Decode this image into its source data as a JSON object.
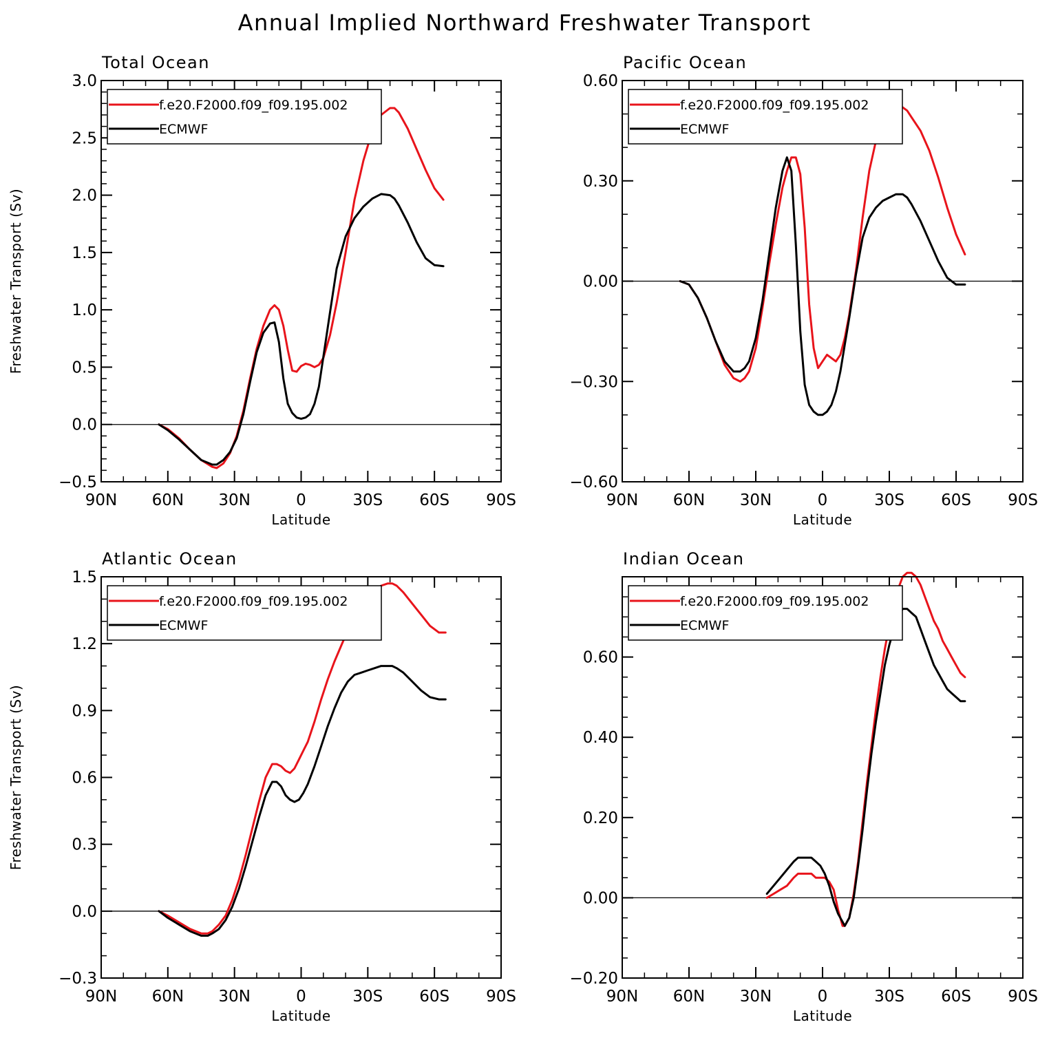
{
  "title": "Annual Implied Northward Freshwater Transport",
  "legend": {
    "series": [
      {
        "name": "f.e20.F2000.f09_f09.195.002",
        "color": "#e8141b"
      },
      {
        "name": "ECMWF",
        "color": "#000000"
      }
    ]
  },
  "chart_data": [
    {
      "type": "line",
      "title": "Total Ocean",
      "xlabel": "Latitude",
      "ylabel": "Freshwater Transport (Sv)",
      "xlim": [
        -90,
        90
      ],
      "ylim": [
        -0.5,
        3.0
      ],
      "xticks": [
        -90,
        -60,
        -30,
        0,
        30,
        60,
        90
      ],
      "xtick_labels": [
        "90N",
        "60N",
        "30N",
        "0",
        "30S",
        "60S",
        "90S"
      ],
      "yticks": [
        -0.5,
        0.0,
        0.5,
        1.0,
        1.5,
        2.0,
        2.5,
        3.0
      ],
      "ytick_labels": [
        "−0.5",
        "0.0",
        "0.5",
        "1.0",
        "1.5",
        "2.0",
        "2.5",
        "3.0"
      ],
      "y_minor_step": 0.1,
      "zero_line": true,
      "series": [
        {
          "name": "f.e20.F2000.f09_f09.195.002",
          "color": "#e8141b",
          "x": [
            -64,
            -60,
            -55,
            -50,
            -45,
            -40,
            -38,
            -35,
            -32,
            -29,
            -26,
            -23,
            -20,
            -17,
            -14,
            -12,
            -10,
            -8,
            -6,
            -4,
            -2,
            0,
            2,
            4,
            6,
            8,
            10,
            13,
            16,
            20,
            24,
            28,
            32,
            36,
            40,
            42,
            44,
            48,
            52,
            56,
            60,
            64
          ],
          "y": [
            0.0,
            -0.04,
            -0.12,
            -0.22,
            -0.31,
            -0.37,
            -0.38,
            -0.34,
            -0.25,
            -0.1,
            0.12,
            0.4,
            0.66,
            0.86,
            1.0,
            1.04,
            1.0,
            0.86,
            0.65,
            0.47,
            0.46,
            0.51,
            0.53,
            0.52,
            0.5,
            0.52,
            0.58,
            0.78,
            1.06,
            1.5,
            1.96,
            2.3,
            2.56,
            2.7,
            2.76,
            2.76,
            2.72,
            2.58,
            2.4,
            2.22,
            2.06,
            1.96
          ]
        },
        {
          "name": "ECMWF",
          "color": "#000000",
          "x": [
            -64,
            -60,
            -55,
            -50,
            -45,
            -40,
            -38,
            -35,
            -32,
            -29,
            -26,
            -23,
            -20,
            -17,
            -14,
            -12,
            -10,
            -8,
            -6,
            -4,
            -2,
            0,
            2,
            4,
            6,
            8,
            10,
            13,
            16,
            20,
            24,
            28,
            32,
            36,
            40,
            42,
            44,
            48,
            52,
            56,
            60,
            64
          ],
          "y": [
            0.0,
            -0.05,
            -0.13,
            -0.22,
            -0.31,
            -0.35,
            -0.35,
            -0.31,
            -0.24,
            -0.12,
            0.09,
            0.37,
            0.63,
            0.8,
            0.88,
            0.89,
            0.72,
            0.4,
            0.18,
            0.1,
            0.06,
            0.05,
            0.06,
            0.09,
            0.18,
            0.33,
            0.59,
            0.98,
            1.36,
            1.64,
            1.8,
            1.9,
            1.97,
            2.01,
            2.0,
            1.97,
            1.91,
            1.76,
            1.59,
            1.45,
            1.39,
            1.38
          ]
        }
      ]
    },
    {
      "type": "line",
      "title": "Pacific Ocean",
      "xlabel": "Latitude",
      "ylabel": "",
      "xlim": [
        -90,
        90
      ],
      "ylim": [
        -0.6,
        0.6
      ],
      "xticks": [
        -90,
        -60,
        -30,
        0,
        30,
        60,
        90
      ],
      "xtick_labels": [
        "90N",
        "60N",
        "30N",
        "0",
        "30S",
        "60S",
        "90S"
      ],
      "yticks": [
        -0.6,
        -0.3,
        0.0,
        0.3,
        0.6
      ],
      "ytick_labels": [
        "−0.60",
        "−0.30",
        "0.00",
        "0.30",
        "0.60"
      ],
      "y_minor_step": 0.1,
      "zero_line": true,
      "series": [
        {
          "name": "f.e20.F2000.f09_f09.195.002",
          "color": "#e8141b",
          "x": [
            -64,
            -60,
            -56,
            -52,
            -48,
            -44,
            -40,
            -37,
            -35,
            -33,
            -30,
            -27,
            -24,
            -21,
            -18,
            -16,
            -14,
            -12,
            -10,
            -8,
            -6,
            -4,
            -2,
            0,
            2,
            4,
            6,
            8,
            10,
            12,
            15,
            18,
            21,
            24,
            27,
            30,
            33,
            36,
            38,
            40,
            44,
            48,
            52,
            56,
            60,
            64
          ],
          "y": [
            0.0,
            -0.01,
            -0.05,
            -0.11,
            -0.18,
            -0.25,
            -0.29,
            -0.3,
            -0.29,
            -0.27,
            -0.2,
            -0.08,
            0.05,
            0.17,
            0.28,
            0.33,
            0.37,
            0.37,
            0.32,
            0.16,
            -0.07,
            -0.2,
            -0.26,
            -0.24,
            -0.22,
            -0.23,
            -0.24,
            -0.22,
            -0.17,
            -0.1,
            0.03,
            0.19,
            0.33,
            0.42,
            0.48,
            0.51,
            0.52,
            0.52,
            0.51,
            0.49,
            0.45,
            0.39,
            0.31,
            0.22,
            0.14,
            0.08
          ]
        },
        {
          "name": "ECMWF",
          "color": "#000000",
          "x": [
            -64,
            -60,
            -56,
            -52,
            -48,
            -44,
            -40,
            -37,
            -35,
            -33,
            -30,
            -27,
            -24,
            -21,
            -18,
            -16,
            -14,
            -12,
            -10,
            -8,
            -6,
            -4,
            -2,
            0,
            2,
            4,
            6,
            8,
            10,
            12,
            15,
            18,
            21,
            24,
            27,
            30,
            33,
            36,
            38,
            40,
            44,
            48,
            52,
            56,
            60,
            64
          ],
          "y": [
            0.0,
            -0.01,
            -0.05,
            -0.11,
            -0.18,
            -0.24,
            -0.27,
            -0.27,
            -0.26,
            -0.24,
            -0.17,
            -0.06,
            0.08,
            0.22,
            0.33,
            0.37,
            0.33,
            0.11,
            -0.15,
            -0.31,
            -0.37,
            -0.39,
            -0.4,
            -0.4,
            -0.39,
            -0.37,
            -0.33,
            -0.27,
            -0.19,
            -0.11,
            0.02,
            0.13,
            0.19,
            0.22,
            0.24,
            0.25,
            0.26,
            0.26,
            0.25,
            0.23,
            0.18,
            0.12,
            0.06,
            0.01,
            -0.01,
            -0.01
          ]
        }
      ]
    },
    {
      "type": "line",
      "title": "Atlantic Ocean",
      "xlabel": "Latitude",
      "ylabel": "Freshwater Transport (Sv)",
      "xlim": [
        -90,
        90
      ],
      "ylim": [
        -0.3,
        1.5
      ],
      "xticks": [
        -90,
        -60,
        -30,
        0,
        30,
        60,
        90
      ],
      "xtick_labels": [
        "90N",
        "60N",
        "30N",
        "0",
        "30S",
        "60S",
        "90S"
      ],
      "yticks": [
        -0.3,
        0.0,
        0.3,
        0.6,
        0.9,
        1.2,
        1.5
      ],
      "ytick_labels": [
        "−0.3",
        "0.0",
        "0.3",
        "0.6",
        "0.9",
        "1.2",
        "1.5"
      ],
      "y_minor_step": 0.1,
      "zero_line": true,
      "series": [
        {
          "name": "f.e20.F2000.f09_f09.195.002",
          "color": "#e8141b",
          "x": [
            -64,
            -60,
            -55,
            -50,
            -45,
            -42,
            -40,
            -37,
            -34,
            -31,
            -28,
            -25,
            -22,
            -19,
            -16,
            -13,
            -11,
            -9,
            -7,
            -5,
            -3,
            -1,
            1,
            3,
            6,
            9,
            12,
            15,
            18,
            21,
            24,
            27,
            30,
            33,
            36,
            39,
            41,
            43,
            46,
            50,
            54,
            58,
            62,
            65
          ],
          "y": [
            0.0,
            -0.02,
            -0.05,
            -0.08,
            -0.1,
            -0.1,
            -0.09,
            -0.06,
            -0.02,
            0.05,
            0.14,
            0.25,
            0.37,
            0.49,
            0.6,
            0.66,
            0.66,
            0.65,
            0.63,
            0.62,
            0.64,
            0.68,
            0.72,
            0.76,
            0.85,
            0.95,
            1.04,
            1.12,
            1.19,
            1.26,
            1.32,
            1.37,
            1.41,
            1.44,
            1.46,
            1.47,
            1.47,
            1.46,
            1.43,
            1.38,
            1.33,
            1.28,
            1.25,
            1.25
          ]
        },
        {
          "name": "ECMWF",
          "color": "#000000",
          "x": [
            -64,
            -60,
            -55,
            -50,
            -45,
            -42,
            -40,
            -37,
            -34,
            -31,
            -28,
            -25,
            -22,
            -19,
            -16,
            -13,
            -11,
            -9,
            -7,
            -5,
            -3,
            -1,
            1,
            3,
            6,
            9,
            12,
            15,
            18,
            21,
            24,
            27,
            30,
            33,
            36,
            39,
            41,
            43,
            46,
            50,
            54,
            58,
            62,
            65
          ],
          "y": [
            0.0,
            -0.03,
            -0.06,
            -0.09,
            -0.11,
            -0.11,
            -0.1,
            -0.08,
            -0.04,
            0.02,
            0.1,
            0.2,
            0.31,
            0.42,
            0.52,
            0.58,
            0.58,
            0.56,
            0.52,
            0.5,
            0.49,
            0.5,
            0.53,
            0.57,
            0.65,
            0.74,
            0.83,
            0.91,
            0.98,
            1.03,
            1.06,
            1.07,
            1.08,
            1.09,
            1.1,
            1.1,
            1.1,
            1.09,
            1.07,
            1.03,
            0.99,
            0.96,
            0.95,
            0.95
          ]
        }
      ]
    },
    {
      "type": "line",
      "title": "Indian Ocean",
      "xlabel": "Latitude",
      "ylabel": "",
      "xlim": [
        -90,
        90
      ],
      "ylim": [
        -0.2,
        0.8
      ],
      "xticks": [
        -90,
        -60,
        -30,
        0,
        30,
        60,
        90
      ],
      "xtick_labels": [
        "90N",
        "60N",
        "30N",
        "0",
        "30S",
        "60S",
        "90S"
      ],
      "yticks": [
        -0.2,
        0.0,
        0.2,
        0.4,
        0.6
      ],
      "ytick_labels": [
        "−0.20",
        "0.00",
        "0.20",
        "0.40",
        "0.60"
      ],
      "y_minor_step": 0.05,
      "zero_line": true,
      "series": [
        {
          "name": "f.e20.F2000.f09_f09.195.002",
          "color": "#e8141b",
          "x": [
            -25,
            -22,
            -19,
            -16,
            -13,
            -11,
            -9,
            -7,
            -5,
            -3,
            -1,
            1,
            3,
            5,
            7,
            9,
            10,
            12,
            14,
            16,
            18,
            20,
            22,
            24,
            26,
            28,
            30,
            32,
            34,
            36,
            38,
            40,
            42,
            44,
            46,
            48,
            50,
            52,
            54,
            56,
            58,
            60,
            62,
            64
          ],
          "y": [
            0.0,
            0.01,
            0.02,
            0.03,
            0.05,
            0.06,
            0.06,
            0.06,
            0.06,
            0.05,
            0.05,
            0.05,
            0.04,
            0.02,
            -0.03,
            -0.07,
            -0.07,
            -0.05,
            0.01,
            0.09,
            0.19,
            0.29,
            0.38,
            0.47,
            0.55,
            0.62,
            0.68,
            0.73,
            0.77,
            0.8,
            0.81,
            0.81,
            0.8,
            0.78,
            0.75,
            0.72,
            0.69,
            0.67,
            0.64,
            0.62,
            0.6,
            0.58,
            0.56,
            0.55
          ]
        },
        {
          "name": "ECMWF",
          "color": "#000000",
          "x": [
            -25,
            -22,
            -19,
            -16,
            -13,
            -11,
            -9,
            -7,
            -5,
            -3,
            -1,
            1,
            3,
            5,
            7,
            9,
            10,
            12,
            14,
            16,
            18,
            20,
            22,
            24,
            26,
            28,
            30,
            32,
            34,
            36,
            38,
            40,
            42,
            44,
            46,
            48,
            50,
            52,
            54,
            56,
            58,
            60,
            62,
            64
          ],
          "y": [
            0.01,
            0.03,
            0.05,
            0.07,
            0.09,
            0.1,
            0.1,
            0.1,
            0.1,
            0.09,
            0.08,
            0.06,
            0.03,
            -0.01,
            -0.04,
            -0.06,
            -0.07,
            -0.05,
            0.0,
            0.08,
            0.17,
            0.27,
            0.36,
            0.44,
            0.51,
            0.58,
            0.63,
            0.67,
            0.7,
            0.72,
            0.72,
            0.71,
            0.7,
            0.67,
            0.64,
            0.61,
            0.58,
            0.56,
            0.54,
            0.52,
            0.51,
            0.5,
            0.49,
            0.49
          ]
        }
      ]
    }
  ]
}
